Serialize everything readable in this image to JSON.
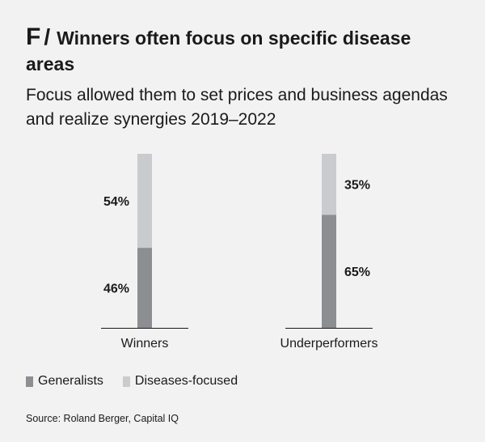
{
  "figure": {
    "letter": "F",
    "separator": "/",
    "title": "Winners often focus on specific disease areas",
    "subtitle": "Focus allowed them to set prices and business agendas and realize synergies 2019–2022"
  },
  "colors": {
    "generalists": "#8c8e91",
    "diseases_focused": "#c9cbce",
    "axis": "#1a1a1a",
    "background": "#f2f2f2"
  },
  "chart_data": {
    "type": "bar",
    "stacked": true,
    "categories": [
      "Winners",
      "Underperformers"
    ],
    "series": [
      {
        "name": "Generalists",
        "values": [
          46,
          65
        ],
        "labels": [
          "46%",
          "65%"
        ]
      },
      {
        "name": "Diseases-focused",
        "values": [
          54,
          35
        ],
        "labels": [
          "54%",
          "35%"
        ]
      }
    ],
    "ylim": [
      0,
      100
    ],
    "grid": false,
    "legend_position": "bottom-left"
  },
  "legend": [
    {
      "label": "Generalists",
      "color_key": "generalists"
    },
    {
      "label": "Diseases-focused",
      "color_key": "diseases_focused"
    }
  ],
  "source": "Source: Roland Berger, Capital IQ"
}
